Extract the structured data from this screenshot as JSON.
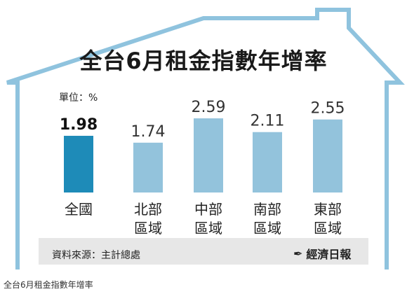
{
  "colors": {
    "house_stroke": "#8fc3de",
    "footer_bg": "#e7e7e7",
    "highlight_bar": "#1e8bb8",
    "bar": "#93c3dc"
  },
  "unit_label": "單位：%",
  "source_label": "資料來源：主計總處",
  "brand": {
    "icon": "publisher-logo-icon",
    "name": "經濟日報"
  },
  "caption": "全台6月租金指數年增率",
  "chart_data": {
    "type": "bar",
    "title": "全台6月租金指數年增率",
    "categories": [
      [
        "全國"
      ],
      [
        "北部",
        "區域"
      ],
      [
        "中部",
        "區域"
      ],
      [
        "南部",
        "區域"
      ],
      [
        "東部",
        "區域"
      ]
    ],
    "values": [
      1.98,
      1.74,
      2.59,
      2.11,
      2.55
    ],
    "value_labels": [
      "1.98",
      "1.74",
      "2.59",
      "2.11",
      "2.55"
    ],
    "highlight_index": 0,
    "ylim": [
      0,
      3
    ],
    "unit": "%"
  }
}
